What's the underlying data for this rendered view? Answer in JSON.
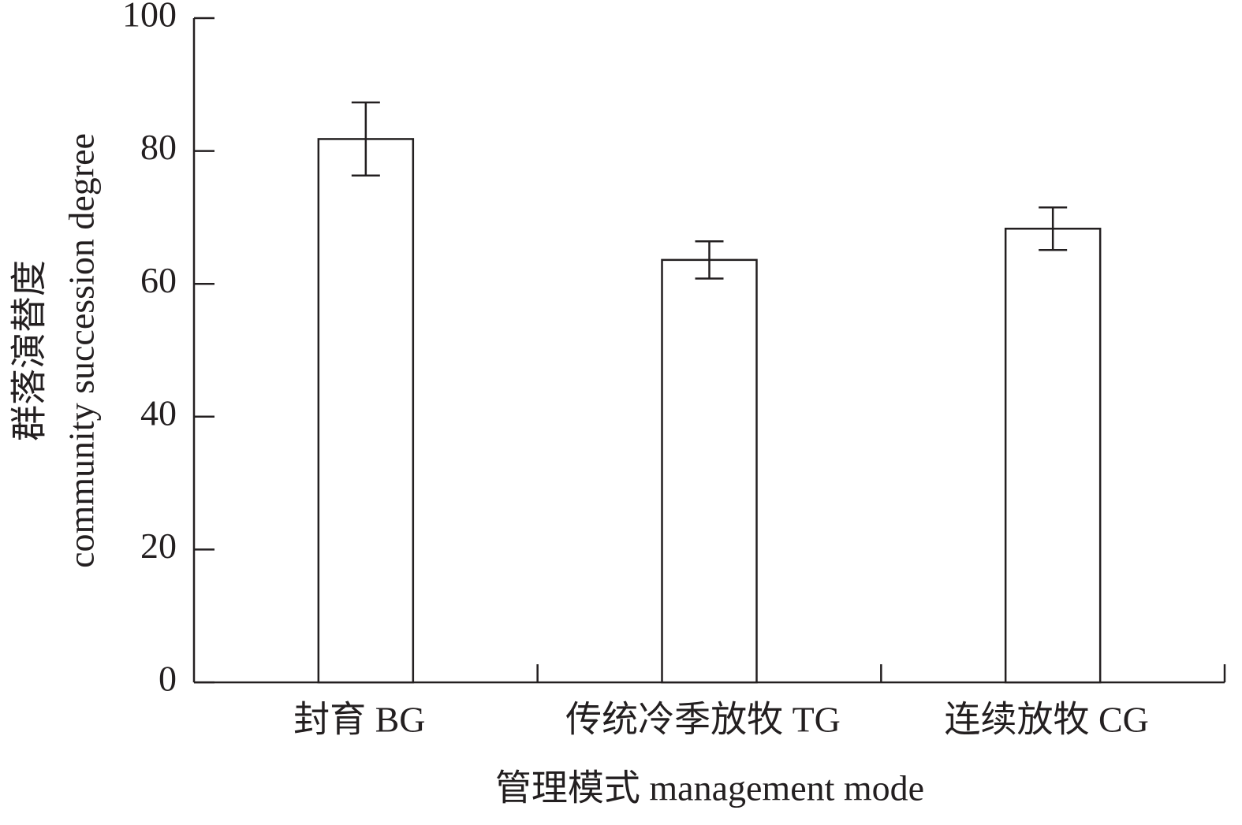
{
  "chart_data": {
    "type": "bar",
    "categories": [
      "封育 BG",
      "传统冷季放牧 TG",
      "连续放牧 CG"
    ],
    "values": [
      81.8,
      63.6,
      68.3
    ],
    "errors": [
      5.5,
      2.8,
      3.2
    ],
    "color": "#ffffff",
    "edge_color": "#231f20",
    "ylabel": [
      "群落演替度",
      "community succession degree"
    ],
    "xlabel": "管理模式 management mode",
    "ylim": [
      0,
      100
    ],
    "yticks": [
      0,
      20,
      40,
      60,
      80,
      100
    ],
    "grid": false
  }
}
